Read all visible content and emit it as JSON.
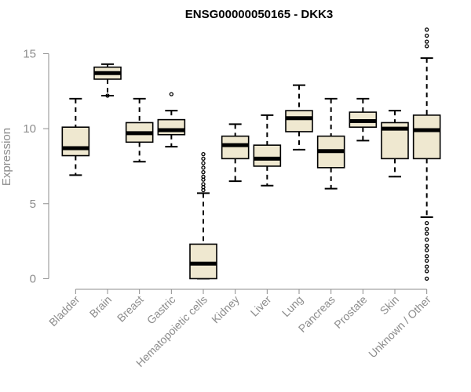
{
  "chart_data": {
    "type": "boxplot",
    "title": "ENSG00000050165 - DKK3",
    "xlabel": "",
    "ylabel": "Expression",
    "ylim": [
      -0.5,
      16.8
    ],
    "yticks": [
      0,
      5,
      10,
      15
    ],
    "grid": false,
    "legend": "none",
    "box_fill": "#efe8d0",
    "categories": [
      "Bladder",
      "Brain",
      "Breast",
      "Gastric",
      "Hematopoietic cells",
      "Kidney",
      "Liver",
      "Lung",
      "Pancreas",
      "Prostate",
      "Skin",
      "Unknown / Other"
    ],
    "boxes": [
      {
        "whisker_low": 6.9,
        "q1": 8.2,
        "median": 8.7,
        "q3": 10.1,
        "whisker_high": 12.0,
        "outliers": []
      },
      {
        "whisker_low": 12.2,
        "q1": 13.3,
        "median": 13.7,
        "q3": 14.1,
        "whisker_high": 14.3,
        "outliers": [
          12.2
        ]
      },
      {
        "whisker_low": 7.8,
        "q1": 9.1,
        "median": 9.7,
        "q3": 10.4,
        "whisker_high": 12.0,
        "outliers": []
      },
      {
        "whisker_low": 8.8,
        "q1": 9.6,
        "median": 9.9,
        "q3": 10.6,
        "whisker_high": 11.2,
        "outliers": [
          12.3
        ]
      },
      {
        "whisker_low": 0.0,
        "q1": 0.0,
        "median": 1.0,
        "q3": 2.3,
        "whisker_high": 5.7,
        "outliers": [
          5.9,
          6.1,
          6.3,
          6.6,
          6.8,
          7.1,
          7.4,
          7.7,
          8.0,
          8.3
        ]
      },
      {
        "whisker_low": 6.5,
        "q1": 8.0,
        "median": 8.9,
        "q3": 9.5,
        "whisker_high": 10.3,
        "outliers": []
      },
      {
        "whisker_low": 6.2,
        "q1": 7.5,
        "median": 8.0,
        "q3": 8.9,
        "whisker_high": 10.9,
        "outliers": []
      },
      {
        "whisker_low": 8.6,
        "q1": 9.8,
        "median": 10.7,
        "q3": 11.2,
        "whisker_high": 12.9,
        "outliers": []
      },
      {
        "whisker_low": 6.0,
        "q1": 7.4,
        "median": 8.5,
        "q3": 9.5,
        "whisker_high": 12.0,
        "outliers": []
      },
      {
        "whisker_low": 9.2,
        "q1": 10.1,
        "median": 10.5,
        "q3": 11.1,
        "whisker_high": 12.0,
        "outliers": []
      },
      {
        "whisker_low": 6.8,
        "q1": 8.0,
        "median": 10.0,
        "q3": 10.4,
        "whisker_high": 11.2,
        "outliers": []
      },
      {
        "whisker_low": 4.1,
        "q1": 8.0,
        "median": 9.9,
        "q3": 10.9,
        "whisker_high": 14.7,
        "outliers": [
          0.0,
          0.5,
          0.8,
          1.2,
          1.5,
          1.9,
          2.2,
          2.6,
          3.0,
          3.3,
          3.7,
          15.5,
          15.8,
          16.2,
          16.6
        ]
      }
    ]
  }
}
